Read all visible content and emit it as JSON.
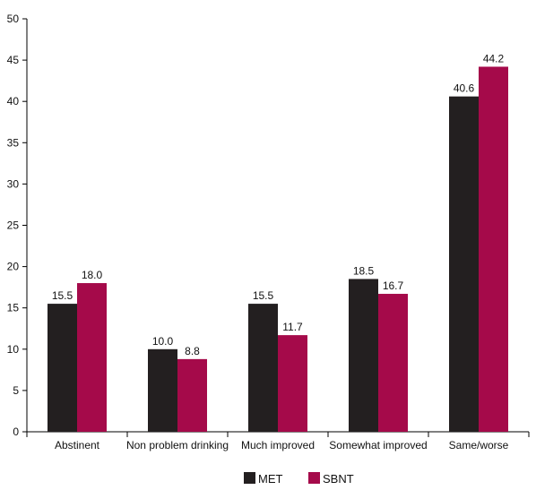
{
  "chart_data": {
    "type": "bar",
    "categories": [
      "Abstinent",
      "Non problem drinking",
      "Much improved",
      "Somewhat improved",
      "Same/worse"
    ],
    "series": [
      {
        "name": "MET",
        "color": "#231f20",
        "values": [
          15.5,
          10.0,
          15.5,
          18.5,
          40.6
        ],
        "labels": [
          "15.5",
          "10.0",
          "15.5",
          "18.5",
          "40.6"
        ]
      },
      {
        "name": "SBNT",
        "color": "#a50a4a",
        "values": [
          18.0,
          8.8,
          11.7,
          16.7,
          44.2
        ],
        "labels": [
          "18.0",
          "8.8",
          "11.7",
          "16.7",
          "44.2"
        ]
      }
    ],
    "ylim": [
      0,
      50
    ],
    "yticks": [
      "0",
      "5",
      "10",
      "15",
      "20",
      "25",
      "30",
      "35",
      "40",
      "45",
      "50"
    ],
    "grid": false,
    "legend_position": "bottom-center"
  }
}
